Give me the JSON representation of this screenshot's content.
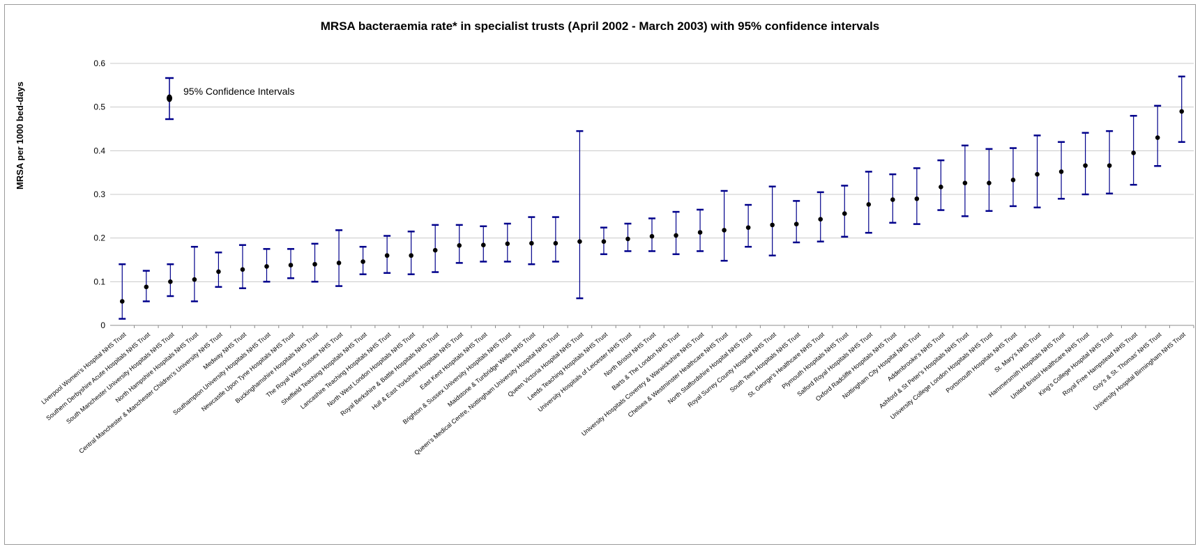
{
  "chart_data": {
    "type": "scatter",
    "title": "MRSA bacteraemia rate* in specialist trusts  (April 2002 - March 2003) with 95% confidence intervals",
    "ylabel": "MRSA per 1000 bed-days",
    "xlabel": "",
    "ylim": [
      0,
      0.6
    ],
    "yticks": [
      "0",
      "0.1",
      "0.2",
      "0.3",
      "0.4",
      "0.5",
      "0.6"
    ],
    "grid": true,
    "legend": {
      "label": "95% Confidence Intervals",
      "placement": "top-left"
    },
    "colors": {
      "errorbar": "#00008b",
      "point": "#000000",
      "grid": "#c8c8c8"
    },
    "categories": [
      "Liverpool Women's Hospital NHS Trust",
      "Southern Derbyshire Acute Hospitals NHS Trust",
      "South Manchester University Hospitals NHS Trust",
      "North Hampshire Hospitals NHS Trust",
      "Central Manchester & Manchester Children's University NHS Trust",
      "Medway NHS Trust",
      "Southampton University Hospitals NHS Trust",
      "Newcastle Upon Tyne Hospitals NHS Trust",
      "Buckinghamshire Hospitals NHS Trust",
      "The Royal West Sussex NHS Trust",
      "Sheffield Teaching Hospitals NHS Trust",
      "Lancashire Teaching Hospitals NHS Trust",
      "North West London Hospitals NHS Trust",
      "Royal Berkshire & Battle Hospitals NHS Trust",
      "Hull & East Yorkshire Hospitals NHS Trust",
      "East Kent Hospitals NHS Trust",
      "Brighton & Sussex University Hospitals NHS Trust",
      "Maidstone & Tunbridge Wells NHS Trust",
      "Queen's Medical Centre, Nottingham University Hospital NHS Trust",
      "Queen Victoria Hospital NHS Trust",
      "Leeds Teaching Hospitals NHS Trust",
      "University Hospitals of Leicester NHS Trust",
      "North Bristol NHS Trust",
      "Barts & The London NHS Trust",
      "University Hospitals Coventry & Warwickshire NHS Trust",
      "Chelsea & Westminster Healthcare NHS Trust",
      "North Staffordshire Hospital NHS Trust",
      "Royal Surrey County Hospital NHS Trust",
      "South Tees Hospitals NHS Trust",
      "St. George's Healthcare NHS Trust",
      "Plymouth Hospitals NHS Trust",
      "Salford Royal Hospitals NHS Trust",
      "Oxford Radcliffe Hospitals NHS Trust",
      "Nottingham City Hospital NHS Trust",
      "Addenbrooke's NHS Trust",
      "Ashford & St Peter's Hospitals NHS Trust",
      "University College London Hospitals NHS Trust",
      "Portsmouth Hospitals NHS Trust",
      "St. Mary's NHS Trust",
      "Hammersmith Hospitals NHS Trust",
      "United Bristol Healthcare NHS Trust",
      "King's College Hospital NHS Trust",
      "Royal Free Hampstead NHS Trust",
      "Guy's & St. Thomas' NHS Trust",
      "University Hospital Birmingham NHS Trust"
    ],
    "values": [
      0.055,
      0.088,
      0.1,
      0.105,
      0.123,
      0.128,
      0.135,
      0.138,
      0.14,
      0.143,
      0.146,
      0.16,
      0.16,
      0.172,
      0.183,
      0.184,
      0.187,
      0.188,
      0.188,
      0.192,
      0.192,
      0.198,
      0.204,
      0.206,
      0.213,
      0.218,
      0.224,
      0.23,
      0.232,
      0.243,
      0.256,
      0.277,
      0.288,
      0.29,
      0.317,
      0.326,
      0.326,
      0.333,
      0.346,
      0.352,
      0.366,
      0.366,
      0.395,
      0.43,
      0.49
    ],
    "lower": [
      0.015,
      0.055,
      0.067,
      0.055,
      0.088,
      0.085,
      0.1,
      0.108,
      0.1,
      0.09,
      0.117,
      0.12,
      0.117,
      0.122,
      0.143,
      0.146,
      0.146,
      0.14,
      0.146,
      0.062,
      0.163,
      0.17,
      0.17,
      0.163,
      0.17,
      0.148,
      0.18,
      0.16,
      0.19,
      0.192,
      0.203,
      0.212,
      0.235,
      0.232,
      0.264,
      0.25,
      0.262,
      0.273,
      0.27,
      0.29,
      0.3,
      0.302,
      0.322,
      0.365,
      0.42
    ],
    "upper": [
      0.14,
      0.125,
      0.14,
      0.18,
      0.167,
      0.184,
      0.175,
      0.175,
      0.187,
      0.218,
      0.18,
      0.205,
      0.215,
      0.23,
      0.23,
      0.227,
      0.233,
      0.248,
      0.248,
      0.445,
      0.224,
      0.233,
      0.245,
      0.26,
      0.265,
      0.308,
      0.276,
      0.318,
      0.285,
      0.305,
      0.32,
      0.352,
      0.346,
      0.36,
      0.378,
      0.412,
      0.404,
      0.406,
      0.435,
      0.42,
      0.441,
      0.445,
      0.48,
      0.503,
      0.57
    ]
  }
}
